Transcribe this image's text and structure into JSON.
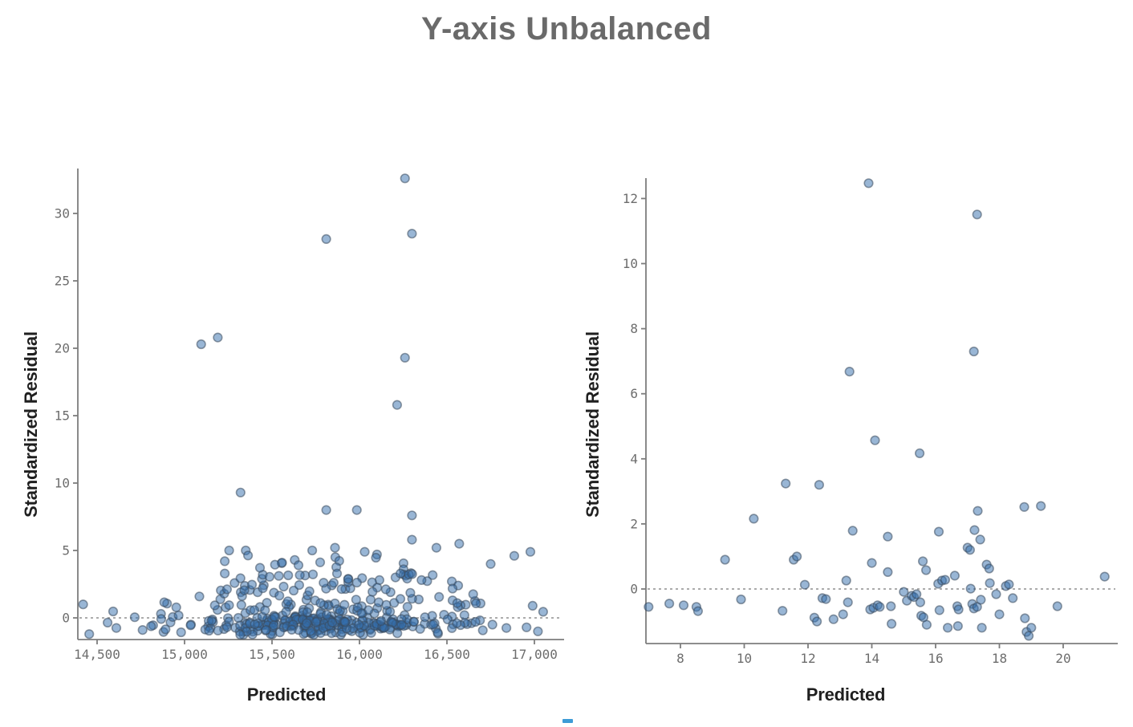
{
  "title": {
    "text": "Y-axis Unbalanced",
    "color": "#6a6a6a"
  },
  "footer_dash": {
    "color": "#3d9bd6"
  },
  "styles": {
    "marker_fill": "rgba(52,110,172,0.5)",
    "marker_stroke": "rgba(58,74,92,0.55)",
    "marker_radius": 5.3,
    "spine_color": "#7d7d7d",
    "tick_color": "#7d7d7d",
    "tick_label_color": "#6d6d6d",
    "zero_line_color": "#8f8f8f"
  },
  "chart_data": [
    {
      "id": "left",
      "type": "scatter",
      "xlabel": "Predicted",
      "ylabel": "Standardized Residual",
      "xlim": [
        14385,
        17165
      ],
      "ylim": [
        -1.6,
        33.4
      ],
      "grid": false,
      "zero_line": 0,
      "x_ticks": [
        {
          "v": 14500,
          "label": "14,500"
        },
        {
          "v": 15000,
          "label": "15,000"
        },
        {
          "v": 15500,
          "label": "15,500"
        },
        {
          "v": 16000,
          "label": "16,000"
        },
        {
          "v": 16500,
          "label": "16,500"
        },
        {
          "v": 17000,
          "label": "17,000"
        }
      ],
      "y_ticks": [
        {
          "v": 0,
          "label": "0"
        },
        {
          "v": 5,
          "label": "5"
        },
        {
          "v": 10,
          "label": "10"
        },
        {
          "v": 15,
          "label": "15"
        },
        {
          "v": 20,
          "label": "20"
        },
        {
          "v": 25,
          "label": "25"
        },
        {
          "v": 30,
          "label": "30"
        }
      ],
      "points": [
        [
          16260,
          32.6
        ],
        [
          16300,
          28.5
        ],
        [
          15810,
          28.1
        ],
        [
          15190,
          20.8
        ],
        [
          15095,
          20.3
        ],
        [
          16260,
          19.3
        ],
        [
          16215,
          15.8
        ],
        [
          15320,
          9.3
        ],
        [
          15810,
          8.0
        ],
        [
          15985,
          8.0
        ],
        [
          16300,
          7.6
        ],
        [
          16300,
          5.8
        ],
        [
          16440,
          5.2
        ],
        [
          16570,
          5.5
        ],
        [
          15255,
          5.0
        ],
        [
          15350,
          5.0
        ],
        [
          15730,
          5.0
        ],
        [
          15860,
          5.2
        ],
        [
          16030,
          4.9
        ],
        [
          16100,
          4.7
        ],
        [
          16252,
          4.05
        ],
        [
          16252,
          3.6
        ],
        [
          16206,
          3.0
        ],
        [
          16750,
          4.0
        ],
        [
          16885,
          4.6
        ],
        [
          16977,
          4.9
        ],
        [
          15230,
          4.2
        ],
        [
          15630,
          4.3
        ],
        [
          15862,
          4.5
        ],
        [
          16528,
          2.7
        ],
        [
          16564,
          2.4
        ],
        [
          16532,
          1.3
        ],
        [
          16660,
          1.25
        ],
        [
          16692,
          1.07
        ],
        [
          16339,
          1.37
        ],
        [
          14420,
          1.0
        ],
        [
          14455,
          -1.2
        ],
        [
          14560,
          -0.35
        ],
        [
          14610,
          -0.75
        ],
        [
          14715,
          0.05
        ],
        [
          14760,
          -0.9
        ],
        [
          14820,
          -0.55
        ],
        [
          14865,
          0.3
        ],
        [
          14880,
          -1.05
        ],
        [
          16990,
          0.9
        ],
        [
          17050,
          0.45
        ],
        [
          16955,
          -0.7
        ],
        [
          17020,
          -1.0
        ],
        [
          16840,
          -0.75
        ],
        [
          16760,
          -0.5
        ],
        [
          16705,
          -0.92
        ],
        [
          16640,
          -0.4
        ],
        [
          16600,
          0.2
        ]
      ],
      "cluster": {
        "seed": 42,
        "n": 390,
        "x_mean": 15780,
        "x_sd": 400,
        "x_range": [
          14550,
          16980
        ],
        "upper_x_range": [
          15150,
          16480
        ],
        "bands": [
          {
            "p": 0.55,
            "gauss": true,
            "mu": -0.55,
            "sd": 0.38,
            "min": -1.25,
            "max": 0.3
          },
          {
            "p": 0.2,
            "min": -0.6,
            "max": 1.1
          },
          {
            "p": 0.13,
            "min": 0.8,
            "max": 2.2
          },
          {
            "p": 0.08,
            "min": 1.8,
            "max": 3.4,
            "upper": true
          },
          {
            "p": 0.04,
            "min": 2.8,
            "max": 4.7,
            "upper": true
          }
        ]
      }
    },
    {
      "id": "right",
      "type": "scatter",
      "xlabel": "Predicted",
      "ylabel": "Standardized Residual",
      "xlim": [
        6.9,
        21.7
      ],
      "ylim": [
        -1.7,
        12.6
      ],
      "grid": false,
      "zero_line": 0,
      "x_ticks": [
        {
          "v": 8,
          "label": "8"
        },
        {
          "v": 10,
          "label": "10"
        },
        {
          "v": 12,
          "label": "12"
        },
        {
          "v": 14,
          "label": "14"
        },
        {
          "v": 16,
          "label": "16"
        },
        {
          "v": 18,
          "label": "18"
        },
        {
          "v": 20,
          "label": "20"
        }
      ],
      "y_ticks": [
        {
          "v": 0,
          "label": "0"
        },
        {
          "v": 2,
          "label": "2"
        },
        {
          "v": 4,
          "label": "4"
        },
        {
          "v": 6,
          "label": "6"
        },
        {
          "v": 8,
          "label": "8"
        },
        {
          "v": 10,
          "label": "10"
        },
        {
          "v": 12,
          "label": "12"
        }
      ],
      "points": [
        [
          7.0,
          -0.55
        ],
        [
          7.65,
          -0.45
        ],
        [
          8.1,
          -0.5
        ],
        [
          8.5,
          -0.55
        ],
        [
          8.55,
          -0.68
        ],
        [
          9.4,
          0.9
        ],
        [
          9.9,
          -0.32
        ],
        [
          10.3,
          2.16
        ],
        [
          11.2,
          -0.67
        ],
        [
          11.3,
          3.24
        ],
        [
          11.55,
          0.9
        ],
        [
          11.65,
          1.0
        ],
        [
          11.9,
          0.13
        ],
        [
          12.2,
          -0.88
        ],
        [
          12.28,
          -1.0
        ],
        [
          12.35,
          3.2
        ],
        [
          12.45,
          -0.28
        ],
        [
          12.56,
          -0.31
        ],
        [
          12.8,
          -0.93
        ],
        [
          13.1,
          -0.78
        ],
        [
          13.2,
          0.26
        ],
        [
          13.25,
          -0.41
        ],
        [
          13.3,
          6.68
        ],
        [
          13.4,
          1.79
        ],
        [
          13.9,
          12.47
        ],
        [
          13.95,
          -0.63
        ],
        [
          14.0,
          0.8
        ],
        [
          14.05,
          -0.58
        ],
        [
          14.1,
          4.57
        ],
        [
          14.18,
          -0.5
        ],
        [
          14.25,
          -0.55
        ],
        [
          14.5,
          1.61
        ],
        [
          14.5,
          0.52
        ],
        [
          14.6,
          -0.53
        ],
        [
          14.62,
          -1.07
        ],
        [
          15.0,
          -0.09
        ],
        [
          15.1,
          -0.36
        ],
        [
          15.25,
          -0.21
        ],
        [
          15.32,
          -0.25
        ],
        [
          15.4,
          -0.16
        ],
        [
          15.5,
          4.17
        ],
        [
          15.52,
          -0.41
        ],
        [
          15.55,
          -0.82
        ],
        [
          15.62,
          -0.87
        ],
        [
          15.6,
          0.85
        ],
        [
          15.7,
          0.58
        ],
        [
          15.72,
          -1.1
        ],
        [
          16.1,
          1.76
        ],
        [
          16.08,
          0.16
        ],
        [
          16.12,
          -0.65
        ],
        [
          16.2,
          0.26
        ],
        [
          16.3,
          0.28
        ],
        [
          16.38,
          -1.19
        ],
        [
          16.6,
          0.41
        ],
        [
          16.68,
          -0.53
        ],
        [
          16.72,
          -0.63
        ],
        [
          16.7,
          -1.14
        ],
        [
          17.0,
          1.27
        ],
        [
          17.08,
          1.2
        ],
        [
          17.1,
          0.01
        ],
        [
          17.15,
          -0.46
        ],
        [
          17.2,
          7.3
        ],
        [
          17.22,
          1.81
        ],
        [
          17.2,
          -0.6
        ],
        [
          17.3,
          11.51
        ],
        [
          17.32,
          2.4
        ],
        [
          17.3,
          -0.55
        ],
        [
          17.4,
          1.52
        ],
        [
          17.42,
          -0.33
        ],
        [
          17.45,
          -1.19
        ],
        [
          17.6,
          0.75
        ],
        [
          17.68,
          0.63
        ],
        [
          17.7,
          0.18
        ],
        [
          17.9,
          -0.16
        ],
        [
          18.0,
          -0.78
        ],
        [
          18.2,
          0.09
        ],
        [
          18.3,
          0.14
        ],
        [
          18.42,
          -0.28
        ],
        [
          18.78,
          2.52
        ],
        [
          18.8,
          -0.9
        ],
        [
          18.85,
          -1.32
        ],
        [
          18.92,
          -1.44
        ],
        [
          19.0,
          -1.19
        ],
        [
          19.3,
          2.55
        ],
        [
          19.82,
          -0.53
        ],
        [
          21.3,
          0.38
        ]
      ]
    }
  ]
}
